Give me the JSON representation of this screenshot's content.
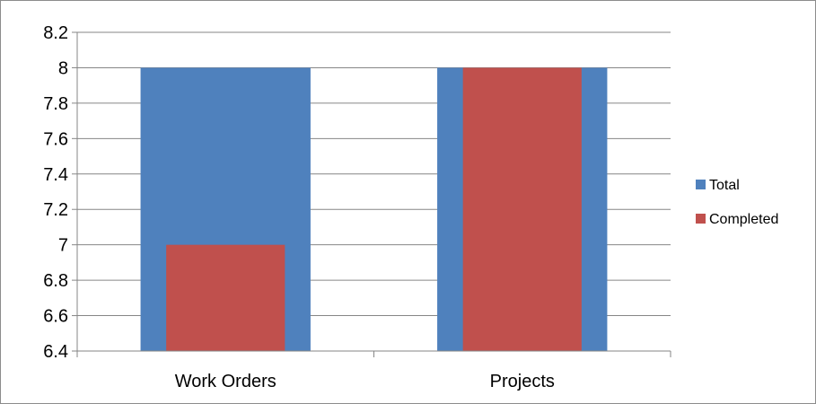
{
  "chart_data": {
    "type": "bar",
    "title": "",
    "xlabel": "",
    "ylabel": "",
    "categories": [
      "Work Orders",
      "Projects"
    ],
    "series": [
      {
        "name": "Total",
        "values": [
          8,
          8
        ],
        "color": "#4F81BD"
      },
      {
        "name": "Completed",
        "values": [
          7,
          8
        ],
        "color": "#C0504D"
      }
    ],
    "ylim": [
      6.4,
      8.2
    ],
    "yticks": [
      6.4,
      6.6,
      6.8,
      7,
      7.2,
      7.4,
      7.6,
      7.8,
      8,
      8.2
    ],
    "ytick_labels": [
      "6.4",
      "6.6",
      "6.8",
      "7",
      "7.2",
      "7.4",
      "7.6",
      "7.8",
      "8",
      "8.2"
    ],
    "grid": true,
    "legend": "right",
    "bar_layout": "overlapped"
  }
}
